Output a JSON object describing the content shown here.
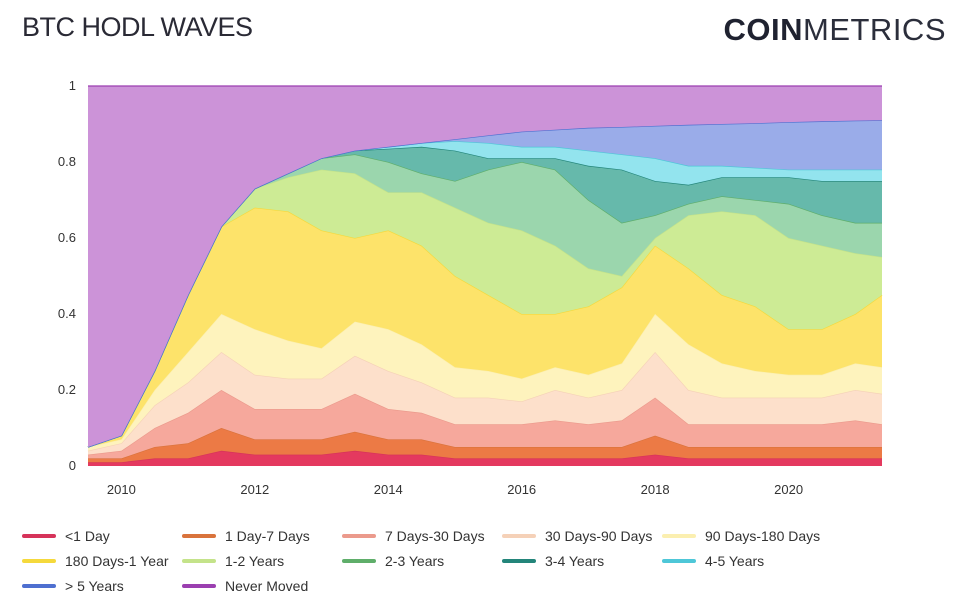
{
  "header": {
    "title": "BTC HODL WAVES",
    "logo_bold": "COIN",
    "logo_light": "METRICS"
  },
  "chart_data": {
    "type": "area",
    "stacked": true,
    "title": "BTC HODL WAVES",
    "xlabel": "",
    "ylabel": "",
    "xlim": [
      2009.5,
      2021.4
    ],
    "ylim": [
      0,
      1
    ],
    "x_ticks": [
      "2010",
      "2012",
      "2014",
      "2016",
      "2018",
      "2020"
    ],
    "y_ticks": [
      "0",
      "0.2",
      "0.4",
      "0.6",
      "0.8",
      "1"
    ],
    "grid": false,
    "legend_placement": "bottom",
    "x": [
      2009.5,
      2010,
      2010.5,
      2011,
      2011.5,
      2012,
      2012.5,
      2013,
      2013.5,
      2014,
      2014.5,
      2015,
      2015.5,
      2016,
      2016.5,
      2017,
      2017.5,
      2018,
      2018.5,
      2019,
      2019.5,
      2020,
      2020.5,
      2021,
      2021.4
    ],
    "series": [
      {
        "name": "<1 Day",
        "line": "#d6335a",
        "fill": "#e4395f",
        "values": [
          0.01,
          0.01,
          0.02,
          0.02,
          0.04,
          0.03,
          0.03,
          0.03,
          0.04,
          0.03,
          0.03,
          0.02,
          0.02,
          0.02,
          0.02,
          0.02,
          0.02,
          0.03,
          0.02,
          0.02,
          0.02,
          0.02,
          0.02,
          0.02,
          0.02
        ]
      },
      {
        "name": "1 Day-7 Days",
        "line": "#d9733c",
        "fill": "#ec7a45",
        "values": [
          0.01,
          0.01,
          0.03,
          0.04,
          0.06,
          0.04,
          0.04,
          0.04,
          0.05,
          0.04,
          0.04,
          0.03,
          0.03,
          0.03,
          0.03,
          0.03,
          0.03,
          0.05,
          0.03,
          0.03,
          0.03,
          0.03,
          0.03,
          0.03,
          0.03
        ]
      },
      {
        "name": "7 Days-30 Days",
        "line": "#eb9a8c",
        "fill": "#f6a89c",
        "values": [
          0.01,
          0.02,
          0.05,
          0.08,
          0.1,
          0.08,
          0.08,
          0.08,
          0.1,
          0.08,
          0.07,
          0.06,
          0.06,
          0.06,
          0.07,
          0.06,
          0.07,
          0.1,
          0.06,
          0.06,
          0.06,
          0.06,
          0.06,
          0.07,
          0.06
        ]
      },
      {
        "name": "30 Days-90 Days",
        "line": "#f5d1b8",
        "fill": "#fde0cb",
        "values": [
          0.01,
          0.02,
          0.06,
          0.08,
          0.1,
          0.09,
          0.08,
          0.08,
          0.1,
          0.1,
          0.08,
          0.07,
          0.07,
          0.06,
          0.08,
          0.07,
          0.08,
          0.12,
          0.09,
          0.07,
          0.07,
          0.07,
          0.07,
          0.08,
          0.08
        ]
      },
      {
        "name": "90 Days-180 Days",
        "line": "#fbefb0",
        "fill": "#fef3bd",
        "values": [
          0.01,
          0.01,
          0.04,
          0.08,
          0.1,
          0.12,
          0.1,
          0.08,
          0.09,
          0.11,
          0.1,
          0.08,
          0.07,
          0.06,
          0.06,
          0.06,
          0.07,
          0.1,
          0.12,
          0.09,
          0.07,
          0.06,
          0.06,
          0.07,
          0.07
        ]
      },
      {
        "name": "180 Days-1 Year",
        "line": "#f5d93c",
        "fill": "#fde36a",
        "values": [
          0,
          0.01,
          0.05,
          0.15,
          0.23,
          0.32,
          0.34,
          0.31,
          0.22,
          0.26,
          0.26,
          0.24,
          0.2,
          0.17,
          0.14,
          0.18,
          0.2,
          0.18,
          0.2,
          0.18,
          0.17,
          0.12,
          0.12,
          0.13,
          0.19
        ]
      },
      {
        "name": "1-2 Years",
        "line": "#c4e38a",
        "fill": "#cdeb95",
        "values": [
          0,
          0,
          0,
          0,
          0,
          0.05,
          0.09,
          0.16,
          0.17,
          0.1,
          0.14,
          0.18,
          0.19,
          0.22,
          0.18,
          0.1,
          0.03,
          0.02,
          0.14,
          0.22,
          0.24,
          0.24,
          0.22,
          0.16,
          0.1
        ]
      },
      {
        "name": "2-3 Years",
        "line": "#5fae6a",
        "fill": "#9bd6ad",
        "values": [
          0,
          0,
          0,
          0,
          0,
          0,
          0.01,
          0.03,
          0.05,
          0.08,
          0.05,
          0.07,
          0.14,
          0.18,
          0.2,
          0.18,
          0.14,
          0.06,
          0.03,
          0.04,
          0.04,
          0.09,
          0.08,
          0.08,
          0.09
        ]
      },
      {
        "name": "3-4 Years",
        "line": "#23857a",
        "fill": "#66b9ab",
        "values": [
          0,
          0,
          0,
          0,
          0,
          0,
          0,
          0,
          0.01,
          0.035,
          0.07,
          0.08,
          0.03,
          0.01,
          0.03,
          0.09,
          0.14,
          0.09,
          0.05,
          0.05,
          0.06,
          0.07,
          0.09,
          0.11,
          0.11
        ]
      },
      {
        "name": "4-5 Years",
        "line": "#4ec7d8",
        "fill": "#93e4ee",
        "values": [
          0,
          0,
          0,
          0,
          0,
          0,
          0,
          0,
          0,
          0.005,
          0.01,
          0.025,
          0.04,
          0.03,
          0.03,
          0.04,
          0.04,
          0.06,
          0.05,
          0.03,
          0.025,
          0.02,
          0.03,
          0.03,
          0.03
        ]
      },
      {
        "name": "> 5 Years",
        "line": "#4e6fd0",
        "fill": "#9aace9",
        "values": [
          0,
          0,
          0,
          0,
          0,
          0,
          0,
          0,
          0,
          0,
          0,
          0.005,
          0.02,
          0.04,
          0.045,
          0.06,
          0.072,
          0.085,
          0.108,
          0.11,
          0.117,
          0.125,
          0.127,
          0.129,
          0.13
        ]
      },
      {
        "name": "Never Moved",
        "line": "#9b3fb0",
        "fill": "#cc93d8",
        "values": [
          0.95,
          0.92,
          0.75,
          0.55,
          0.37,
          0.27,
          0.23,
          0.19,
          0.17,
          0.16,
          0.15,
          0.14,
          0.13,
          0.12,
          0.115,
          0.11,
          0.108,
          0.105,
          0.102,
          0.1,
          0.098,
          0.095,
          0.093,
          0.091,
          0.09
        ]
      }
    ]
  }
}
